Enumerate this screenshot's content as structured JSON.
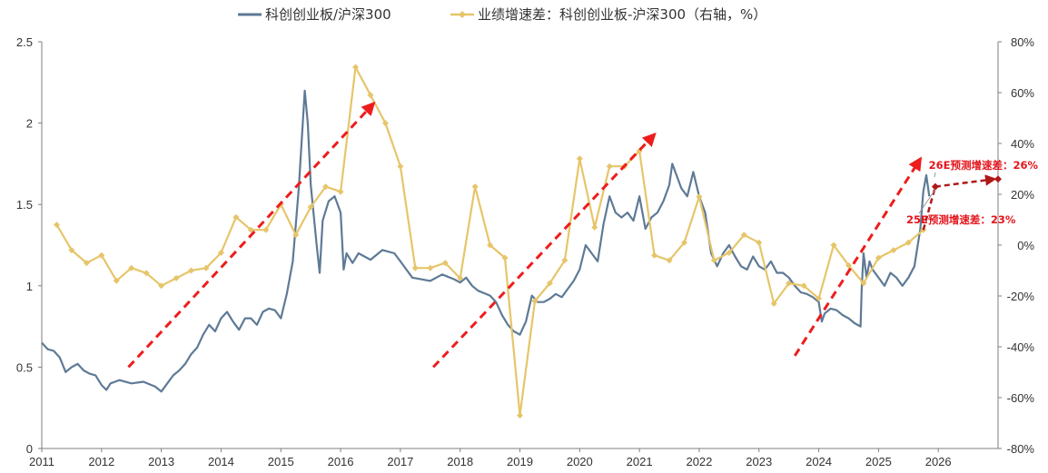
{
  "chart_data": {
    "type": "line",
    "series": [
      {
        "name": "科创创业板/沪深300",
        "axis": "left",
        "color": "#5e7a96",
        "points": [
          [
            2011.0,
            0.65
          ],
          [
            2011.1,
            0.61
          ],
          [
            2011.2,
            0.6
          ],
          [
            2011.3,
            0.56
          ],
          [
            2011.4,
            0.47
          ],
          [
            2011.5,
            0.5
          ],
          [
            2011.6,
            0.52
          ],
          [
            2011.7,
            0.48
          ],
          [
            2011.8,
            0.46
          ],
          [
            2011.9,
            0.45
          ],
          [
            2012.0,
            0.39
          ],
          [
            2012.08,
            0.36
          ],
          [
            2012.15,
            0.4
          ],
          [
            2012.3,
            0.42
          ],
          [
            2012.5,
            0.4
          ],
          [
            2012.7,
            0.41
          ],
          [
            2012.9,
            0.38
          ],
          [
            2013.0,
            0.35
          ],
          [
            2013.1,
            0.4
          ],
          [
            2013.2,
            0.45
          ],
          [
            2013.3,
            0.48
          ],
          [
            2013.4,
            0.52
          ],
          [
            2013.5,
            0.58
          ],
          [
            2013.6,
            0.62
          ],
          [
            2013.7,
            0.7
          ],
          [
            2013.8,
            0.76
          ],
          [
            2013.9,
            0.72
          ],
          [
            2014.0,
            0.8
          ],
          [
            2014.1,
            0.84
          ],
          [
            2014.2,
            0.78
          ],
          [
            2014.3,
            0.73
          ],
          [
            2014.4,
            0.8
          ],
          [
            2014.5,
            0.8
          ],
          [
            2014.6,
            0.76
          ],
          [
            2014.7,
            0.84
          ],
          [
            2014.8,
            0.86
          ],
          [
            2014.9,
            0.85
          ],
          [
            2015.0,
            0.8
          ],
          [
            2015.1,
            0.95
          ],
          [
            2015.2,
            1.15
          ],
          [
            2015.3,
            1.6
          ],
          [
            2015.35,
            1.9
          ],
          [
            2015.4,
            2.2
          ],
          [
            2015.45,
            2.0
          ],
          [
            2015.5,
            1.62
          ],
          [
            2015.6,
            1.25
          ],
          [
            2015.65,
            1.08
          ],
          [
            2015.7,
            1.4
          ],
          [
            2015.8,
            1.52
          ],
          [
            2015.9,
            1.55
          ],
          [
            2016.0,
            1.45
          ],
          [
            2016.05,
            1.1
          ],
          [
            2016.1,
            1.2
          ],
          [
            2016.2,
            1.14
          ],
          [
            2016.3,
            1.2
          ],
          [
            2016.5,
            1.16
          ],
          [
            2016.7,
            1.22
          ],
          [
            2016.9,
            1.2
          ],
          [
            2017.0,
            1.15
          ],
          [
            2017.2,
            1.05
          ],
          [
            2017.5,
            1.03
          ],
          [
            2017.7,
            1.07
          ],
          [
            2017.9,
            1.04
          ],
          [
            2018.0,
            1.02
          ],
          [
            2018.1,
            1.05
          ],
          [
            2018.2,
            1.0
          ],
          [
            2018.3,
            0.97
          ],
          [
            2018.5,
            0.94
          ],
          [
            2018.6,
            0.9
          ],
          [
            2018.7,
            0.82
          ],
          [
            2018.8,
            0.76
          ],
          [
            2018.9,
            0.72
          ],
          [
            2019.0,
            0.7
          ],
          [
            2019.1,
            0.78
          ],
          [
            2019.2,
            0.94
          ],
          [
            2019.3,
            0.9
          ],
          [
            2019.4,
            0.9
          ],
          [
            2019.5,
            0.92
          ],
          [
            2019.6,
            0.95
          ],
          [
            2019.7,
            0.93
          ],
          [
            2019.8,
            0.98
          ],
          [
            2019.9,
            1.03
          ],
          [
            2020.0,
            1.1
          ],
          [
            2020.1,
            1.25
          ],
          [
            2020.2,
            1.2
          ],
          [
            2020.3,
            1.15
          ],
          [
            2020.4,
            1.38
          ],
          [
            2020.5,
            1.55
          ],
          [
            2020.6,
            1.45
          ],
          [
            2020.7,
            1.42
          ],
          [
            2020.8,
            1.45
          ],
          [
            2020.9,
            1.4
          ],
          [
            2021.0,
            1.55
          ],
          [
            2021.1,
            1.35
          ],
          [
            2021.2,
            1.42
          ],
          [
            2021.3,
            1.45
          ],
          [
            2021.4,
            1.52
          ],
          [
            2021.5,
            1.62
          ],
          [
            2021.55,
            1.75
          ],
          [
            2021.6,
            1.7
          ],
          [
            2021.7,
            1.6
          ],
          [
            2021.8,
            1.55
          ],
          [
            2021.9,
            1.7
          ],
          [
            2022.0,
            1.55
          ],
          [
            2022.1,
            1.45
          ],
          [
            2022.2,
            1.2
          ],
          [
            2022.3,
            1.12
          ],
          [
            2022.4,
            1.2
          ],
          [
            2022.5,
            1.25
          ],
          [
            2022.6,
            1.18
          ],
          [
            2022.7,
            1.12
          ],
          [
            2022.8,
            1.1
          ],
          [
            2022.9,
            1.18
          ],
          [
            2023.0,
            1.12
          ],
          [
            2023.1,
            1.1
          ],
          [
            2023.2,
            1.15
          ],
          [
            2023.3,
            1.08
          ],
          [
            2023.4,
            1.08
          ],
          [
            2023.5,
            1.05
          ],
          [
            2023.6,
            1.0
          ],
          [
            2023.7,
            0.96
          ],
          [
            2023.8,
            0.95
          ],
          [
            2023.9,
            0.93
          ],
          [
            2024.0,
            0.9
          ],
          [
            2024.05,
            0.78
          ],
          [
            2024.1,
            0.83
          ],
          [
            2024.2,
            0.86
          ],
          [
            2024.3,
            0.85
          ],
          [
            2024.4,
            0.82
          ],
          [
            2024.5,
            0.8
          ],
          [
            2024.6,
            0.77
          ],
          [
            2024.7,
            0.75
          ],
          [
            2024.72,
            0.99
          ],
          [
            2024.75,
            1.2
          ],
          [
            2024.8,
            1.05
          ],
          [
            2024.85,
            1.15
          ],
          [
            2024.9,
            1.1
          ],
          [
            2025.0,
            1.05
          ],
          [
            2025.1,
            1.0
          ],
          [
            2025.2,
            1.08
          ],
          [
            2025.3,
            1.05
          ],
          [
            2025.4,
            1.0
          ],
          [
            2025.5,
            1.05
          ],
          [
            2025.6,
            1.12
          ],
          [
            2025.7,
            1.35
          ],
          [
            2025.75,
            1.58
          ],
          [
            2025.8,
            1.68
          ],
          [
            2025.85,
            1.55
          ]
        ]
      },
      {
        "name": "业绩增速差：科创创业板-沪深300（右轴，%）",
        "axis": "right",
        "color": "#e6c56a",
        "points": [
          [
            2011.25,
            8
          ],
          [
            2011.5,
            -2
          ],
          [
            2011.75,
            -7
          ],
          [
            2012.0,
            -4
          ],
          [
            2012.25,
            -14
          ],
          [
            2012.5,
            -9
          ],
          [
            2012.75,
            -11
          ],
          [
            2013.0,
            -16
          ],
          [
            2013.25,
            -13
          ],
          [
            2013.5,
            -10
          ],
          [
            2013.75,
            -9
          ],
          [
            2014.0,
            -3
          ],
          [
            2014.25,
            11
          ],
          [
            2014.5,
            6
          ],
          [
            2014.75,
            6
          ],
          [
            2015.0,
            16
          ],
          [
            2015.25,
            4
          ],
          [
            2015.5,
            15
          ],
          [
            2015.75,
            23
          ],
          [
            2016.0,
            21
          ],
          [
            2016.25,
            70
          ],
          [
            2016.5,
            59
          ],
          [
            2016.75,
            48
          ],
          [
            2017.0,
            31
          ],
          [
            2017.25,
            -9
          ],
          [
            2017.5,
            -9
          ],
          [
            2017.75,
            -7
          ],
          [
            2018.0,
            -13
          ],
          [
            2018.25,
            23
          ],
          [
            2018.5,
            0
          ],
          [
            2018.75,
            -5
          ],
          [
            2019.0,
            -67
          ],
          [
            2019.25,
            -22
          ],
          [
            2019.5,
            -15
          ],
          [
            2019.75,
            -6
          ],
          [
            2020.0,
            34
          ],
          [
            2020.25,
            7
          ],
          [
            2020.5,
            31
          ],
          [
            2020.75,
            31
          ],
          [
            2021.0,
            37
          ],
          [
            2021.25,
            -4
          ],
          [
            2021.5,
            -6
          ],
          [
            2021.75,
            1
          ],
          [
            2022.0,
            19
          ],
          [
            2022.25,
            -6
          ],
          [
            2022.5,
            -3
          ],
          [
            2022.75,
            4
          ],
          [
            2023.0,
            1
          ],
          [
            2023.25,
            -23
          ],
          [
            2023.5,
            -15
          ],
          [
            2023.75,
            -16
          ],
          [
            2024.0,
            -21
          ],
          [
            2024.25,
            0
          ],
          [
            2024.5,
            -8
          ],
          [
            2024.75,
            -15
          ],
          [
            2025.0,
            -5
          ],
          [
            2025.25,
            -2
          ],
          [
            2025.5,
            1
          ],
          [
            2025.75,
            6
          ]
        ]
      }
    ],
    "x_axis": {
      "min": 2011,
      "max": 2027,
      "ticks": [
        "2011",
        "2012",
        "2013",
        "2014",
        "2015",
        "2016",
        "2017",
        "2018",
        "2019",
        "2020",
        "2021",
        "2022",
        "2023",
        "2024",
        "2025",
        "2026"
      ]
    },
    "y_left": {
      "min": 0,
      "max": 2.5,
      "ticks": [
        "0",
        "0.5",
        "1",
        "1.5",
        "2",
        "2.5"
      ]
    },
    "y_right": {
      "min": -80,
      "max": 80,
      "ticks": [
        "-80%",
        "-60%",
        "-40%",
        "-20%",
        "0%",
        "20%",
        "40%",
        "60%",
        "80%"
      ]
    },
    "legend_position": "top-center",
    "trend_arrows": [
      {
        "from": [
          2012.45,
          0.5
        ],
        "to": [
          2016.55,
          2.12
        ]
      },
      {
        "from": [
          2017.55,
          0.5
        ],
        "to": [
          2021.25,
          1.93
        ]
      },
      {
        "from": [
          2023.6,
          0.57
        ],
        "to": [
          2025.7,
          1.78
        ]
      }
    ],
    "forecast_line": {
      "color": "#b01818",
      "points": [
        [
          "2025E",
          2025.95,
          23
        ],
        [
          "2026E",
          2027.0,
          26
        ]
      ]
    },
    "annotations": [
      {
        "label": "26E预测增速差：26%",
        "x": 2027.0,
        "y": 26
      },
      {
        "label": "25E预测增速差：23%",
        "x": 2025.95,
        "y": 23
      }
    ],
    "title": "",
    "xlabel": "",
    "ylabel": "",
    "grid": false
  }
}
